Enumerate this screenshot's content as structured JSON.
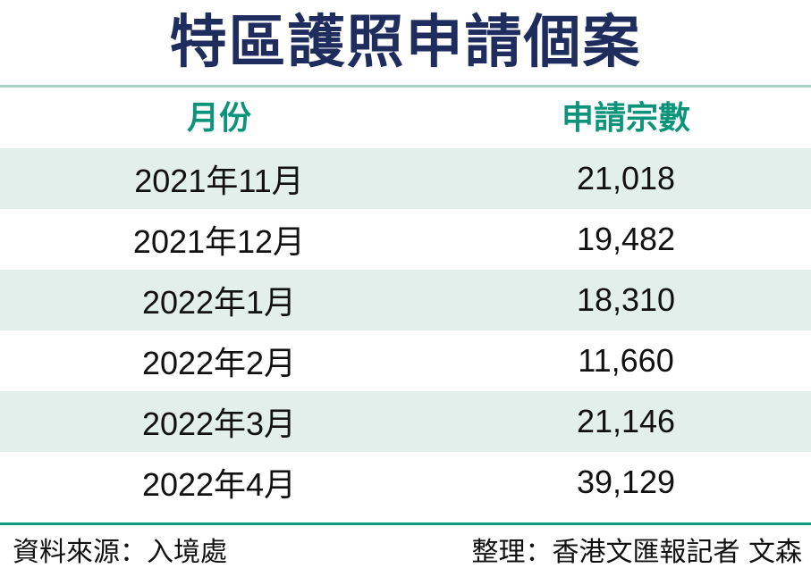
{
  "title": "特區護照申請個案",
  "colors": {
    "title": "#1f2c5e",
    "header": "#0b9479",
    "stripe": "#e3efeb",
    "rule": "#0f9a80"
  },
  "chart_data": {
    "type": "table",
    "title": "特區護照申請個案",
    "columns": [
      "月份",
      "申請宗數"
    ],
    "rows": [
      [
        "2021年11月",
        "21,018"
      ],
      [
        "2021年12月",
        "19,482"
      ],
      [
        "2022年1月",
        "18,310"
      ],
      [
        "2022年2月",
        "11,660"
      ],
      [
        "2022年3月",
        "21,146"
      ],
      [
        "2022年4月",
        "39,129"
      ]
    ]
  },
  "footer": {
    "source": "資料來源：入境處",
    "credit": "整理：香港文匯報記者 文森"
  }
}
